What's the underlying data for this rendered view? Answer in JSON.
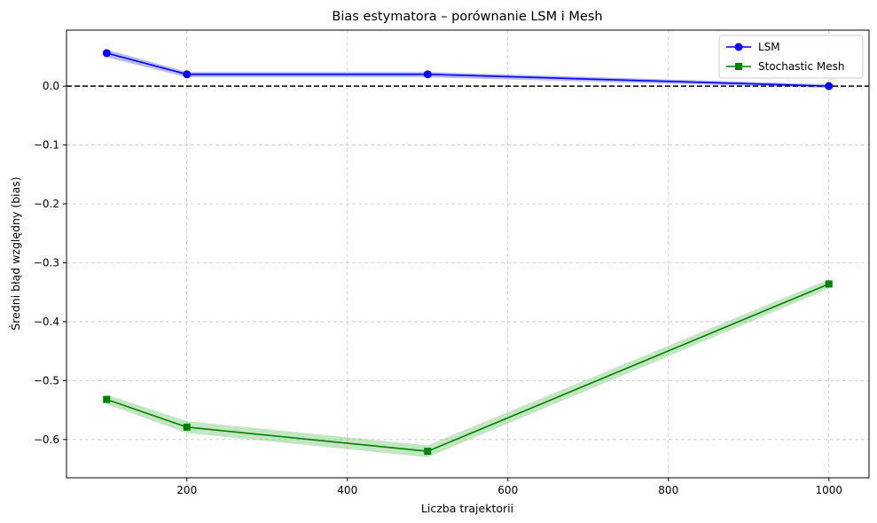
{
  "chart_data": {
    "type": "line",
    "title": "Bias estymatora – porównanie LSM i Mesh",
    "xlabel": "Liczba trajektorii",
    "ylabel": "Średni błąd względny (bias)",
    "xlim": [
      50,
      1050
    ],
    "ylim": [
      -0.665,
      0.095
    ],
    "xticks": [
      200,
      400,
      600,
      800,
      1000
    ],
    "xtick_labels": [
      "200",
      "400",
      "600",
      "800",
      "1000"
    ],
    "yticks": [
      0.0,
      -0.1,
      -0.2,
      -0.3,
      -0.4,
      -0.5,
      -0.6
    ],
    "ytick_labels": [
      "0.0",
      "−0.1",
      "−0.2",
      "−0.3",
      "−0.4",
      "−0.5",
      "−0.6"
    ],
    "grid": true,
    "legend_position": "top-right",
    "reference_line": {
      "y": 0.0,
      "style": "dashed",
      "color": "#000000"
    },
    "x": [
      100,
      200,
      500,
      1000
    ],
    "series": [
      {
        "name": "LSM",
        "values": [
          0.056,
          0.02,
          0.02,
          0.0
        ],
        "band_lower": [
          0.049,
          0.015,
          0.015,
          -0.003
        ],
        "band_upper": [
          0.062,
          0.024,
          0.024,
          0.003
        ],
        "color": "#0000ff",
        "band_color": "#7f7fff",
        "marker": "circle"
      },
      {
        "name": "Stochastic Mesh",
        "values": [
          -0.532,
          -0.579,
          -0.62,
          -0.336
        ],
        "band_lower": [
          -0.54,
          -0.589,
          -0.63,
          -0.344
        ],
        "band_upper": [
          -0.524,
          -0.569,
          -0.61,
          -0.328
        ],
        "color": "#008000",
        "band_color": "#90d090",
        "marker": "square"
      }
    ]
  }
}
